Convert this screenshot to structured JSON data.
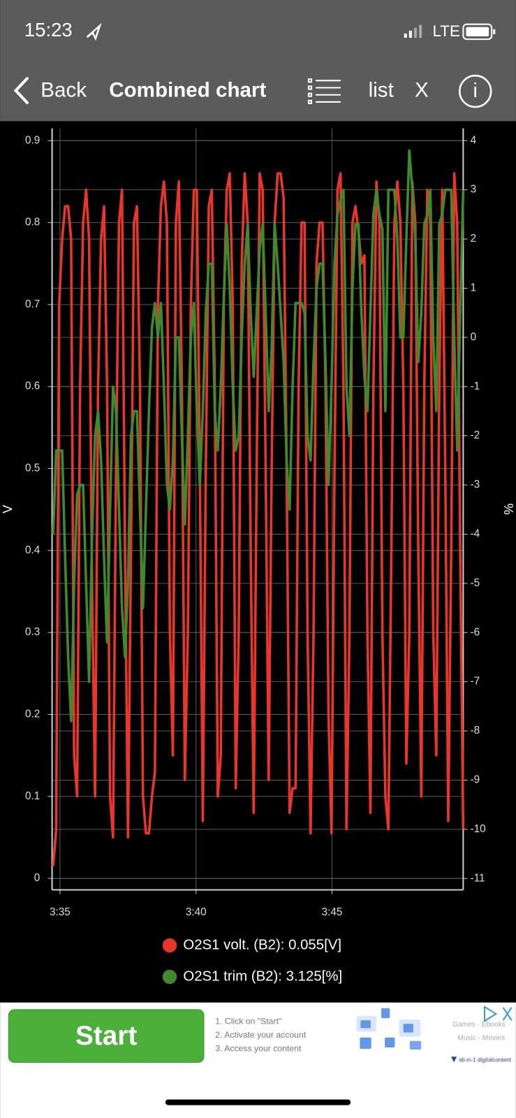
{
  "status_bar": {
    "time": "15:23",
    "network": "LTE"
  },
  "nav": {
    "back": "Back",
    "title": "Combined chart",
    "list": "list",
    "close": "X",
    "info": "i"
  },
  "chart_data": {
    "type": "line",
    "ylabel": "V",
    "y2label": "%",
    "grid": true,
    "x": [
      34.75,
      34.86,
      34.97,
      35.08,
      35.19,
      35.3,
      35.41,
      35.52,
      35.63,
      35.74,
      35.85,
      35.96,
      36.07,
      36.18,
      36.29,
      36.4,
      36.51,
      36.62,
      36.73,
      36.84,
      36.95,
      37.06,
      37.17,
      37.28,
      37.39,
      37.5,
      37.61,
      37.72,
      37.83,
      37.94,
      38.05,
      38.16,
      38.27,
      38.38,
      38.49,
      38.6,
      38.71,
      38.82,
      38.93,
      39.04,
      39.15,
      39.26,
      39.37,
      39.48,
      39.59,
      39.7,
      39.81,
      39.92,
      40.03,
      40.14,
      40.25,
      40.36,
      40.47,
      40.58,
      40.69,
      40.8,
      40.91,
      41.02,
      41.13,
      41.24,
      41.35,
      41.46,
      41.57,
      41.68,
      41.79,
      41.9,
      42.01,
      42.12,
      42.23,
      42.34,
      42.45,
      42.56,
      42.67,
      42.78,
      42.89,
      43.0,
      43.11,
      43.22,
      43.33,
      43.44,
      43.55,
      43.66,
      43.77,
      43.88,
      43.99,
      44.1,
      44.21,
      44.32,
      44.43,
      44.54,
      44.65,
      44.76,
      44.87,
      44.98,
      45.09,
      45.2,
      45.31,
      45.42,
      45.53,
      45.64,
      45.75,
      45.86,
      45.97,
      46.08,
      46.19,
      46.3,
      46.41,
      46.52,
      46.63,
      46.74,
      46.85,
      46.96,
      47.07,
      47.18,
      47.29,
      47.4,
      47.51,
      47.62,
      47.73,
      47.84,
      47.95,
      48.06,
      48.17,
      48.28,
      48.39,
      48.5,
      48.61,
      48.72,
      48.83,
      48.94,
      49.05,
      49.16,
      49.27,
      49.38,
      49.49,
      49.6,
      49.71,
      49.82
    ],
    "xlim": [
      34.71,
      49.82
    ],
    "xticks": [
      {
        "value": 35,
        "label": "3:35"
      },
      {
        "value": 40,
        "label": "3:40"
      },
      {
        "value": 45,
        "label": "3:45"
      }
    ],
    "ylim": [
      -0.014,
      0.915
    ],
    "yticks": [
      0,
      0.1,
      0.2,
      0.3,
      0.4,
      0.5,
      0.6,
      0.7,
      0.8,
      0.9
    ],
    "y2lim": [
      -11.23,
      4.25
    ],
    "y2ticks": [
      4,
      3,
      2,
      1,
      0,
      -1,
      -2,
      -3,
      -4,
      -5,
      -6,
      -7,
      -8,
      -9,
      -10,
      -11
    ],
    "series": [
      {
        "name": "O2S1 volt. (B2): 0.055[V]",
        "color": "#e8372a",
        "values": [
          0.015,
          0.06,
          0.7,
          0.78,
          0.82,
          0.82,
          0.78,
          0.15,
          0.1,
          0.6,
          0.8,
          0.84,
          0.78,
          0.35,
          0.1,
          0.6,
          0.78,
          0.82,
          0.6,
          0.1,
          0.05,
          0.5,
          0.8,
          0.84,
          0.4,
          0.05,
          0.4,
          0.8,
          0.82,
          0.6,
          0.1,
          0.055,
          0.055,
          0.1,
          0.13,
          0.7,
          0.82,
          0.85,
          0.8,
          0.3,
          0.15,
          0.8,
          0.85,
          0.6,
          0.12,
          0.3,
          0.7,
          0.84,
          0.84,
          0.5,
          0.07,
          0.5,
          0.82,
          0.84,
          0.6,
          0.1,
          0.15,
          0.7,
          0.84,
          0.86,
          0.7,
          0.11,
          0.3,
          0.75,
          0.86,
          0.8,
          0.4,
          0.08,
          0.5,
          0.86,
          0.84,
          0.5,
          0.12,
          0.5,
          0.8,
          0.86,
          0.86,
          0.83,
          0.5,
          0.08,
          0.11,
          0.11,
          0.6,
          0.8,
          0.8,
          0.3,
          0.055,
          0.3,
          0.75,
          0.8,
          0.8,
          0.6,
          0.2,
          0.055,
          0.5,
          0.84,
          0.86,
          0.6,
          0.06,
          0.3,
          0.8,
          0.82,
          0.79,
          0.75,
          0.76,
          0.3,
          0.08,
          0.6,
          0.85,
          0.8,
          0.3,
          0.1,
          0.06,
          0.4,
          0.8,
          0.85,
          0.8,
          0.6,
          0.14,
          0.3,
          0.85,
          0.8,
          0.4,
          0.1,
          0.6,
          0.84,
          0.8,
          0.3,
          0.15,
          0.6,
          0.84,
          0.5,
          0.07,
          0.4,
          0.86,
          0.8,
          0.4,
          0.06
        ]
      },
      {
        "name": "O2S1 trim (B2): 3.125[%]",
        "color": "#3e8a2c",
        "axis": "y2",
        "values": [
          -4,
          -2.3,
          -2.3,
          -2.3,
          -4.5,
          -6.5,
          -7.8,
          -5,
          -3.2,
          -3,
          -3,
          -5,
          -7,
          -4,
          -2,
          -1.5,
          -2.5,
          -4.5,
          -6.2,
          -3.5,
          -1,
          -1.5,
          -3.5,
          -5.5,
          -6.5,
          -5,
          -2,
          -1.5,
          -1.5,
          -3.5,
          -5.5,
          -3.5,
          -1.5,
          0.2,
          0.7,
          0,
          0.7,
          -1,
          -3,
          -3.5,
          -2.5,
          0,
          0,
          -2,
          -3.8,
          -2,
          0,
          0.7,
          -1.5,
          -3,
          -1.5,
          0.5,
          1.5,
          1.5,
          -1.5,
          -2.3,
          -1,
          0.8,
          2.3,
          1,
          -1,
          -2.3,
          -2,
          0,
          1.5,
          2.3,
          0.5,
          -0.8,
          0.5,
          1.8,
          2.3,
          0.5,
          -1.5,
          -0.2,
          2.3,
          1.5,
          0.5,
          -0.5,
          -2.5,
          -3.5,
          -1,
          0.7,
          0.7,
          0.7,
          0.5,
          -2,
          -2.5,
          -0.5,
          1,
          1.5,
          1.5,
          -0.5,
          -3,
          -1,
          1.5,
          2.5,
          2.8,
          3,
          -1,
          -2,
          1,
          2.3,
          2.3,
          0.5,
          -0.8,
          -1.5,
          0.5,
          2.5,
          3,
          2.5,
          2.2,
          -1.5,
          3,
          3,
          3,
          2,
          0,
          0,
          2,
          3.8,
          3,
          2,
          -0.5,
          0.5,
          2.3,
          2.5,
          3,
          0,
          -1.5,
          2.3,
          2.5,
          3,
          3,
          3,
          0,
          -2.3,
          0.5,
          3
        ]
      }
    ]
  },
  "ad": {
    "button": "Start",
    "steps": [
      "1. Click on \"Start\"",
      "2. Activate your account",
      "3. Access your content"
    ],
    "tags": [
      "Games · Ebooks ·",
      "Music · Movies"
    ],
    "brand": "all-in-1 digitalcontent"
  }
}
